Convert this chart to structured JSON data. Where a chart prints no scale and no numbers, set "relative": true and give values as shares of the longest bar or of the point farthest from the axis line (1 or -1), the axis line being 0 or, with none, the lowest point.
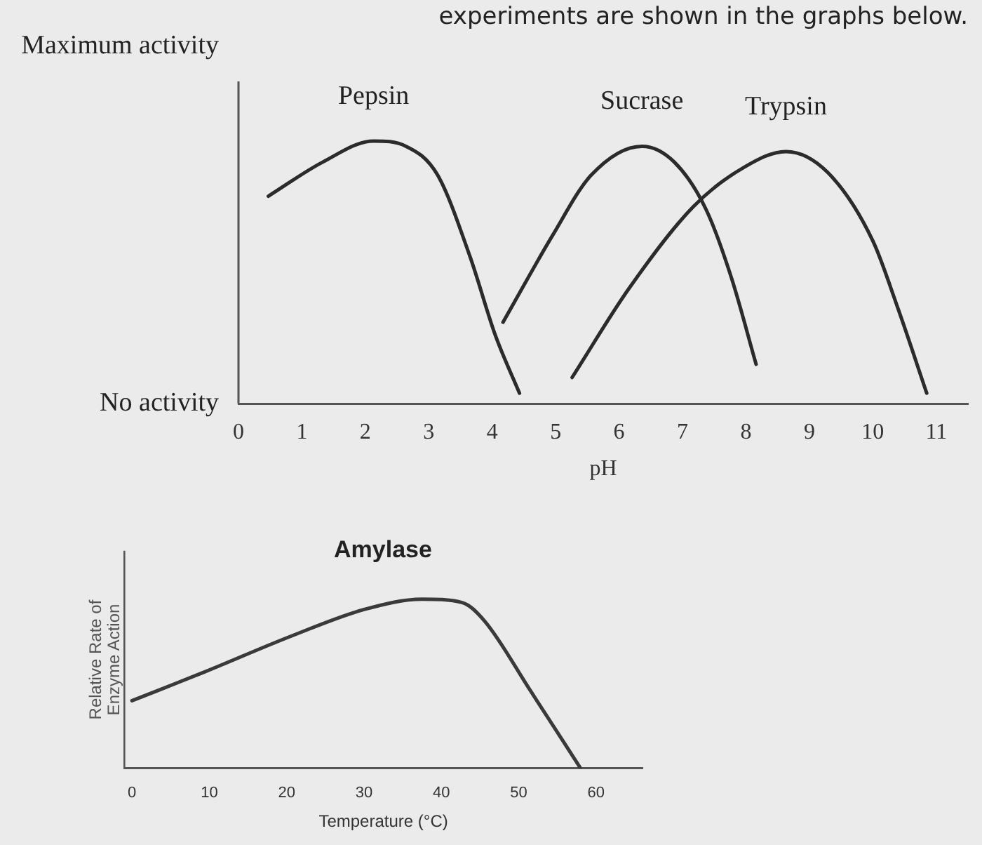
{
  "chart_data": [
    {
      "type": "line",
      "annotations": [
        "experiments are shown in the graphs below.",
        "Maximum activity",
        "No activity"
      ],
      "xlabel": "pH",
      "relative": true,
      "xlim": [
        0,
        11.5
      ],
      "xticks": [
        0,
        1,
        2,
        3,
        4,
        5,
        6,
        7,
        8,
        9,
        10,
        11
      ],
      "grid": false,
      "legend": false,
      "marker": "none",
      "line_style": "solid",
      "series": [
        {
          "name": "Pepsin",
          "color": "#2b2b2b",
          "x": [
            0.47,
            1.33,
            2.13,
            2.64,
            3.14,
            3.65,
            4.05,
            4.43
          ],
          "values": [
            0.79,
            0.92,
            1,
            0.98,
            0.87,
            0.56,
            0.26,
            0.04
          ]
        },
        {
          "name": "Sucrase",
          "color": "#2b2b2b",
          "x": [
            4.17,
            4.95,
            5.56,
            6.36,
            6.87,
            7.37,
            7.77,
            8.16
          ],
          "values": [
            0.31,
            0.64,
            0.87,
            0.98,
            0.92,
            0.74,
            0.48,
            0.15
          ]
        },
        {
          "name": "Trypsin",
          "color": "#2b2b2b",
          "x": [
            5.26,
            6.16,
            7.17,
            7.97,
            8.63,
            9.29,
            10.0,
            10.4,
            10.85
          ],
          "values": [
            0.1,
            0.44,
            0.75,
            0.9,
            0.96,
            0.88,
            0.62,
            0.36,
            0.04
          ]
        }
      ]
    },
    {
      "type": "line",
      "title": "Amylase",
      "xlabel": "Temperature (°C)",
      "ylabel": "Relative Rate of Enzyme Action",
      "relative": true,
      "xlim": [
        -1,
        66
      ],
      "xticks": [
        0,
        10,
        20,
        30,
        40,
        50,
        60
      ],
      "grid": false,
      "legend": false,
      "marker": "none",
      "line_style": "solid",
      "series": [
        {
          "color": "#3a3a3a",
          "x": [
            0,
            9.4,
            20.5,
            30.1,
            37.5,
            42.7,
            45.6,
            51.5,
            58
          ],
          "values": [
            0.4,
            0.57,
            0.78,
            0.94,
            1,
            0.98,
            0.87,
            0.46,
            0
          ]
        }
      ]
    }
  ]
}
